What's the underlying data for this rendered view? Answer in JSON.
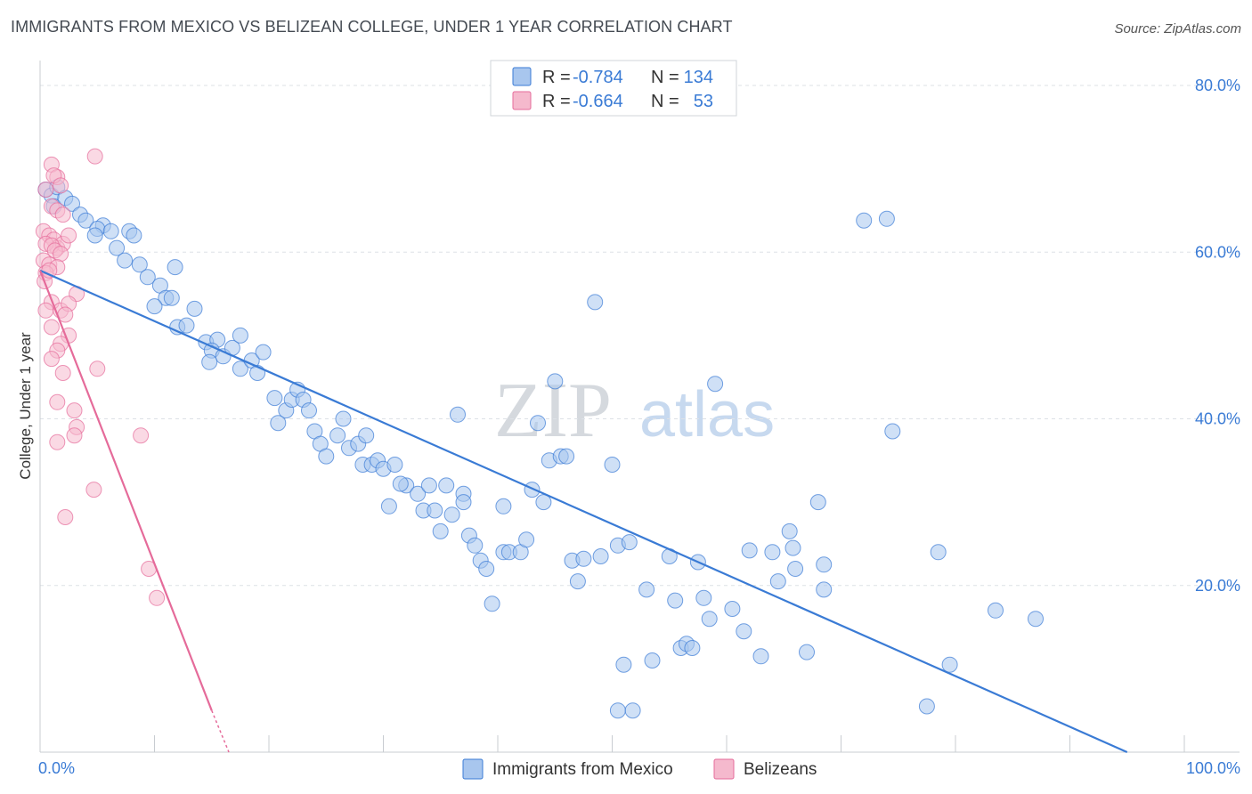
{
  "title": "IMMIGRANTS FROM MEXICO VS BELIZEAN COLLEGE, UNDER 1 YEAR CORRELATION CHART",
  "source": "Source: ZipAtlas.com",
  "watermark": {
    "zip": "ZIP",
    "atlas": "atlas"
  },
  "colors": {
    "blue": "#3a7bd5",
    "blue_fill": "#a8c6ee",
    "pink": "#e56b9a",
    "pink_fill": "#f5b9cd",
    "grid": "#dde1e6"
  },
  "legend": {
    "rows": [
      {
        "r_label": "R =",
        "r_value": "-0.784",
        "n_label": "N =",
        "n_value": "134"
      },
      {
        "r_label": "R =",
        "r_value": "-0.664",
        "n_label": "N =",
        "n_value": "53"
      }
    ]
  },
  "bottom_legend": [
    "Immigrants from Mexico",
    "Belizeans"
  ],
  "chart_data": {
    "type": "scatter",
    "title": "IMMIGRANTS FROM MEXICO VS BELIZEAN COLLEGE, UNDER 1 YEAR CORRELATION CHART",
    "xlabel": "",
    "ylabel": "College, Under 1 year",
    "xlim": [
      0,
      100
    ],
    "ylim": [
      0,
      80
    ],
    "x_tick_labels": [
      "0.0%",
      "100.0%"
    ],
    "y_tick_labels": [
      {
        "value": 80,
        "label": "80.0%"
      },
      {
        "value": 60,
        "label": "60.0%"
      },
      {
        "value": 40,
        "label": "40.0%"
      },
      {
        "value": 20,
        "label": "20.0%"
      }
    ],
    "series": [
      {
        "name": "Immigrants from Mexico",
        "color": "blue",
        "trend": {
          "x": [
            0,
            95
          ],
          "y": [
            57.8,
            0
          ]
        },
        "points": [
          [
            0.5,
            67.5
          ],
          [
            1.0,
            66.8
          ],
          [
            1.5,
            67.8
          ],
          [
            1.2,
            65.5
          ],
          [
            2.2,
            66.5
          ],
          [
            2.8,
            65.8
          ],
          [
            3.5,
            64.5
          ],
          [
            4.0,
            63.8
          ],
          [
            5.5,
            63.2
          ],
          [
            5.0,
            62.8
          ],
          [
            6.2,
            62.5
          ],
          [
            7.8,
            62.5
          ],
          [
            8.2,
            62.0
          ],
          [
            4.8,
            62.0
          ],
          [
            6.7,
            60.5
          ],
          [
            7.4,
            59.0
          ],
          [
            8.7,
            58.5
          ],
          [
            9.4,
            57.0
          ],
          [
            11.8,
            58.2
          ],
          [
            10.5,
            56.0
          ],
          [
            11.0,
            54.5
          ],
          [
            11.5,
            54.5
          ],
          [
            10.0,
            53.5
          ],
          [
            13.5,
            53.2
          ],
          [
            12.0,
            51.0
          ],
          [
            12.8,
            51.2
          ],
          [
            14.5,
            49.2
          ],
          [
            15.5,
            49.5
          ],
          [
            15.0,
            48.2
          ],
          [
            16.0,
            47.5
          ],
          [
            16.8,
            48.5
          ],
          [
            17.5,
            50.0
          ],
          [
            14.8,
            46.8
          ],
          [
            17.5,
            46.0
          ],
          [
            18.5,
            47.0
          ],
          [
            19.0,
            45.5
          ],
          [
            19.5,
            48.0
          ],
          [
            20.5,
            42.5
          ],
          [
            21.5,
            41.0
          ],
          [
            20.8,
            39.5
          ],
          [
            22.0,
            42.3
          ],
          [
            22.5,
            43.5
          ],
          [
            23.0,
            42.3
          ],
          [
            23.5,
            41.0
          ],
          [
            24.0,
            38.5
          ],
          [
            24.5,
            37.0
          ],
          [
            25.0,
            35.5
          ],
          [
            26.0,
            38.0
          ],
          [
            26.5,
            40.0
          ],
          [
            27.0,
            36.5
          ],
          [
            27.8,
            37.0
          ],
          [
            28.5,
            38.0
          ],
          [
            28.2,
            34.5
          ],
          [
            29.0,
            34.5
          ],
          [
            29.5,
            35.0
          ],
          [
            30.0,
            34.0
          ],
          [
            31.0,
            34.5
          ],
          [
            30.5,
            29.5
          ],
          [
            32.0,
            32.0
          ],
          [
            33.0,
            31.0
          ],
          [
            31.5,
            32.2
          ],
          [
            33.5,
            29.0
          ],
          [
            34.5,
            29.0
          ],
          [
            35.0,
            26.5
          ],
          [
            34.0,
            32.0
          ],
          [
            35.5,
            32.0
          ],
          [
            36.0,
            28.5
          ],
          [
            37.0,
            31.0
          ],
          [
            37.5,
            26.0
          ],
          [
            38.0,
            24.8
          ],
          [
            38.5,
            23.0
          ],
          [
            39.0,
            22.0
          ],
          [
            36.5,
            40.5
          ],
          [
            37.0,
            30.0
          ],
          [
            39.5,
            17.8
          ],
          [
            40.5,
            29.5
          ],
          [
            40.5,
            24.0
          ],
          [
            41.0,
            24.0
          ],
          [
            42.0,
            24.0
          ],
          [
            42.5,
            25.5
          ],
          [
            43.0,
            31.5
          ],
          [
            43.5,
            39.5
          ],
          [
            44.0,
            30.0
          ],
          [
            44.5,
            35.0
          ],
          [
            45.5,
            35.5
          ],
          [
            45.0,
            44.5
          ],
          [
            46.0,
            35.5
          ],
          [
            46.5,
            23.0
          ],
          [
            47.0,
            20.5
          ],
          [
            47.5,
            23.2
          ],
          [
            48.5,
            54.0
          ],
          [
            49.0,
            23.5
          ],
          [
            50.0,
            34.5
          ],
          [
            50.5,
            24.8
          ],
          [
            51.0,
            10.5
          ],
          [
            51.5,
            25.2
          ],
          [
            50.5,
            5.0
          ],
          [
            51.8,
            5.0
          ],
          [
            53.0,
            19.5
          ],
          [
            53.5,
            11.0
          ],
          [
            55.0,
            23.5
          ],
          [
            55.5,
            18.2
          ],
          [
            56.0,
            12.5
          ],
          [
            56.5,
            13.0
          ],
          [
            57.0,
            12.5
          ],
          [
            57.5,
            22.8
          ],
          [
            58.5,
            16.0
          ],
          [
            58.0,
            18.5
          ],
          [
            59.0,
            44.2
          ],
          [
            60.5,
            17.2
          ],
          [
            61.5,
            14.5
          ],
          [
            62.0,
            24.2
          ],
          [
            63.0,
            11.5
          ],
          [
            64.5,
            20.5
          ],
          [
            64.0,
            24.0
          ],
          [
            65.5,
            26.5
          ],
          [
            66.0,
            22.0
          ],
          [
            65.8,
            24.5
          ],
          [
            67.0,
            12.0
          ],
          [
            68.0,
            30.0
          ],
          [
            68.5,
            19.5
          ],
          [
            68.5,
            22.5
          ],
          [
            72.0,
            63.8
          ],
          [
            74.5,
            38.5
          ],
          [
            74.0,
            64.0
          ],
          [
            78.5,
            24.0
          ],
          [
            77.5,
            5.5
          ],
          [
            79.5,
            10.5
          ],
          [
            83.5,
            17.0
          ],
          [
            87.0,
            16.0
          ]
        ]
      },
      {
        "name": "Belizeans",
        "color": "pink",
        "trend": {
          "x": [
            0,
            15
          ],
          "y": [
            57.8,
            5.0
          ]
        },
        "trend_dashed": {
          "x": [
            15,
            16.5
          ],
          "y": [
            5.0,
            0
          ]
        },
        "points": [
          [
            1.0,
            70.5
          ],
          [
            4.8,
            71.5
          ],
          [
            1.5,
            69.0
          ],
          [
            1.2,
            69.2
          ],
          [
            1.8,
            68.0
          ],
          [
            0.5,
            67.5
          ],
          [
            1.0,
            65.5
          ],
          [
            1.5,
            65.0
          ],
          [
            2.0,
            64.5
          ],
          [
            0.3,
            62.5
          ],
          [
            0.8,
            62.0
          ],
          [
            1.2,
            61.5
          ],
          [
            1.5,
            60.5
          ],
          [
            2.0,
            61.0
          ],
          [
            2.5,
            62.0
          ],
          [
            0.5,
            61.0
          ],
          [
            1.0,
            60.8
          ],
          [
            1.3,
            60.2
          ],
          [
            1.8,
            59.8
          ],
          [
            0.3,
            59.0
          ],
          [
            0.8,
            58.5
          ],
          [
            1.5,
            58.2
          ],
          [
            0.5,
            57.5
          ],
          [
            0.4,
            56.5
          ],
          [
            0.8,
            57.8
          ],
          [
            3.2,
            55.0
          ],
          [
            1.0,
            54.0
          ],
          [
            0.5,
            53.0
          ],
          [
            1.8,
            53.0
          ],
          [
            2.5,
            53.8
          ],
          [
            2.2,
            52.5
          ],
          [
            1.0,
            51.0
          ],
          [
            2.5,
            50.0
          ],
          [
            1.8,
            49.0
          ],
          [
            1.5,
            48.2
          ],
          [
            1.0,
            47.2
          ],
          [
            2.0,
            45.5
          ],
          [
            5.0,
            46.0
          ],
          [
            1.5,
            42.0
          ],
          [
            3.0,
            41.0
          ],
          [
            3.2,
            39.0
          ],
          [
            3.0,
            38.0
          ],
          [
            1.5,
            37.2
          ],
          [
            8.8,
            38.0
          ],
          [
            4.7,
            31.5
          ],
          [
            2.2,
            28.2
          ],
          [
            9.5,
            22.0
          ],
          [
            10.2,
            18.5
          ]
        ]
      }
    ]
  }
}
